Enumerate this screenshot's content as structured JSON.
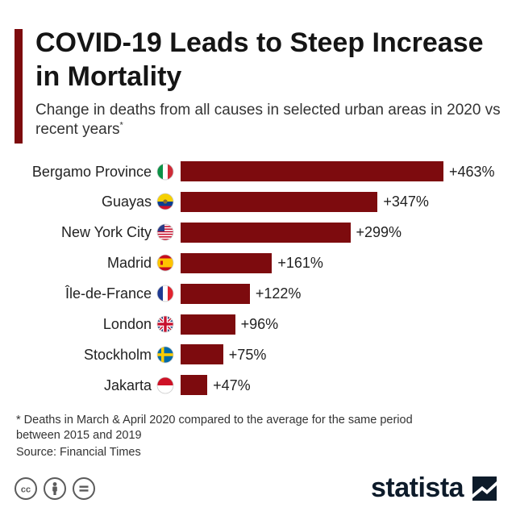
{
  "title": "COVID-19 Leads to Steep Increase in Mortality",
  "subtitle": "Change in deaths from all causes in selected urban areas in 2020 vs recent years",
  "subtitle_mark": "*",
  "footnote": "* Deaths in March & April 2020 compared to the average for the same period between 2015 and 2019",
  "source": "Source: Financial Times",
  "brand": "statista",
  "colors": {
    "bar": "#7d0b0e",
    "text": "#1a1a1a"
  },
  "license_icons": [
    "cc-icon",
    "by-attribution-icon",
    "no-derivatives-icon"
  ],
  "chart_data": {
    "type": "bar",
    "orientation": "horizontal",
    "title": "COVID-19 Leads to Steep Increase in Mortality",
    "xlabel": "",
    "ylabel": "",
    "xlim": [
      0,
      463
    ],
    "unit": "%",
    "grid": false,
    "legend": "none",
    "categories": [
      "Bergamo Province",
      "Guayas",
      "New York City",
      "Madrid",
      "Île-de-France",
      "London",
      "Stockholm",
      "Jakarta"
    ],
    "flags": [
      "italy-flag-icon",
      "ecuador-flag-icon",
      "usa-flag-icon",
      "spain-flag-icon",
      "france-flag-icon",
      "uk-flag-icon",
      "sweden-flag-icon",
      "indonesia-flag-icon"
    ],
    "values": [
      463,
      347,
      299,
      161,
      122,
      96,
      75,
      47
    ],
    "value_labels": [
      "+463%",
      "+347%",
      "+299%",
      "+161%",
      "+122%",
      "+96%",
      "+75%",
      "+47%"
    ]
  }
}
